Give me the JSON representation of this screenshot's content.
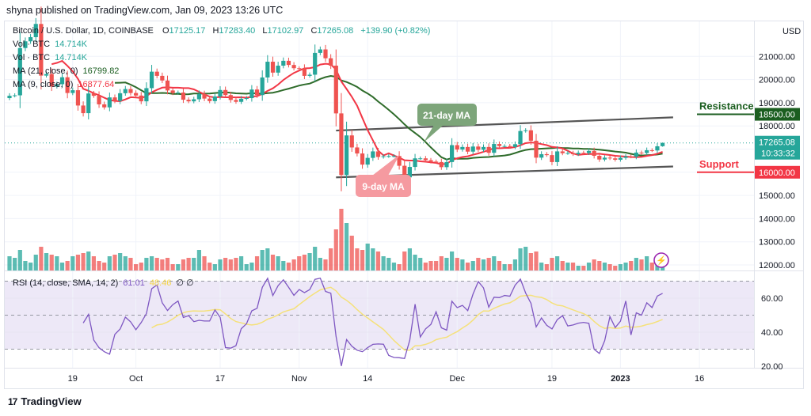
{
  "publisher_line": "shyna published on TradingView.com, Jan 09, 2023 13:26 UTC",
  "legend": {
    "symbol": "Bitcoin / U.S. Dollar, 1D, COINBASE",
    "open_label": "O",
    "open": "17125.17",
    "high_label": "H",
    "high": "17283.40",
    "low_label": "L",
    "low": "17102.97",
    "close_label": "C",
    "close": "17265.08",
    "change": "+139.90 (+0.82%)",
    "vol1_label": "Vol · BTC",
    "vol1": "14.714K",
    "vol2_label": "Vol · BTC",
    "vol2": "14.714K",
    "ma21_label": "MA (21, close, 0)",
    "ma21": "16799.82",
    "ma9_label": "MA (9, close, 0)",
    "ma9": "16877.64",
    "rsi_label": "RSI (14, close, SMA, 14, 2)",
    "rsi": "61.01",
    "rsi_sma": "48.46",
    "rsi_extra": "∅ ∅"
  },
  "logo_text": "TradingView",
  "colors": {
    "up": "#26a69a",
    "down": "#ef5350",
    "ma21": "#2e6b2a",
    "ma9": "#f23645",
    "rsi": "#7e57c2",
    "rsi_sma": "#f5e17a",
    "rsi_band": "#ede8f7",
    "resistance": "#1b5e20",
    "support": "#f23645"
  },
  "chart_data": {
    "type": "candlestick",
    "currency_label": "USD",
    "price_ticks": [
      "21000.00",
      "20000.00",
      "19000.00",
      "18000.00",
      "15000.00",
      "14000.00",
      "13000.00",
      "12000.00"
    ],
    "price_tick_values": [
      21000,
      20000,
      19000,
      18000,
      15000,
      14000,
      13000,
      12000
    ],
    "rsi_ticks": [
      "60.00",
      "40.00",
      "20.00"
    ],
    "rsi_tick_values": [
      60,
      40,
      20
    ],
    "rsi_bands": [
      70,
      50,
      30
    ],
    "x_ticks": [
      {
        "label": "19",
        "date": "2022-09-19"
      },
      {
        "label": "Oct",
        "date": "2022-10-01"
      },
      {
        "label": "17",
        "date": "2022-10-17"
      },
      {
        "label": "Nov",
        "date": "2022-11-01"
      },
      {
        "label": "14",
        "date": "2022-11-14"
      },
      {
        "label": "Dec",
        "date": "2022-12-01"
      },
      {
        "label": "19",
        "date": "2022-12-19"
      },
      {
        "label": "2023",
        "date": "2023-01-01",
        "bold": true
      },
      {
        "label": "16",
        "date": "2023-01-16"
      }
    ],
    "last_price_badge": {
      "price": "17265.08",
      "countdown": "10:33:32"
    },
    "levels": [
      {
        "name": "Resistance",
        "value": 18500,
        "label": "18500.00",
        "color": "#1b5e20"
      },
      {
        "name": "Support",
        "value": 16000,
        "label": "16000.00",
        "color": "#f23645"
      }
    ],
    "trendlines": [
      {
        "from": [
          "2022-11-08",
          17800
        ],
        "to": [
          "2023-01-11",
          18370
        ]
      },
      {
        "from": [
          "2022-11-08",
          15780
        ],
        "to": [
          "2023-01-11",
          16250
        ]
      }
    ],
    "callouts": [
      {
        "text": "21-day MA",
        "color": "#7da57a"
      },
      {
        "text": "9-day MA",
        "color": "#f59aa0"
      }
    ],
    "last_bar": {
      "open": 17125.17,
      "high": 17283.4,
      "low": 17102.97,
      "close": 17265.08,
      "volume_k": 14.714
    },
    "dates": [
      "2022-09-07",
      "2022-09-08",
      "2022-09-09",
      "2022-09-10",
      "2022-09-11",
      "2022-09-12",
      "2022-09-13",
      "2022-09-14",
      "2022-09-15",
      "2022-09-16",
      "2022-09-17",
      "2022-09-18",
      "2022-09-19",
      "2022-09-20",
      "2022-09-21",
      "2022-09-22",
      "2022-09-23",
      "2022-09-24",
      "2022-09-25",
      "2022-09-26",
      "2022-09-27",
      "2022-09-28",
      "2022-09-29",
      "2022-09-30",
      "2022-10-01",
      "2022-10-02",
      "2022-10-03",
      "2022-10-04",
      "2022-10-05",
      "2022-10-06",
      "2022-10-07",
      "2022-10-08",
      "2022-10-09",
      "2022-10-10",
      "2022-10-11",
      "2022-10-12",
      "2022-10-13",
      "2022-10-14",
      "2022-10-15",
      "2022-10-16",
      "2022-10-17",
      "2022-10-18",
      "2022-10-19",
      "2022-10-20",
      "2022-10-21",
      "2022-10-22",
      "2022-10-23",
      "2022-10-24",
      "2022-10-25",
      "2022-10-26",
      "2022-10-27",
      "2022-10-28",
      "2022-10-29",
      "2022-10-30",
      "2022-10-31",
      "2022-11-01",
      "2022-11-02",
      "2022-11-03",
      "2022-11-04",
      "2022-11-05",
      "2022-11-06",
      "2022-11-07",
      "2022-11-08",
      "2022-11-09",
      "2022-11-10",
      "2022-11-11",
      "2022-11-12",
      "2022-11-13",
      "2022-11-14",
      "2022-11-15",
      "2022-11-16",
      "2022-11-17",
      "2022-11-18",
      "2022-11-19",
      "2022-11-20",
      "2022-11-21",
      "2022-11-22",
      "2022-11-23",
      "2022-11-24",
      "2022-11-25",
      "2022-11-26",
      "2022-11-27",
      "2022-11-28",
      "2022-11-29",
      "2022-11-30",
      "2022-12-01",
      "2022-12-02",
      "2022-12-03",
      "2022-12-04",
      "2022-12-05",
      "2022-12-06",
      "2022-12-07",
      "2022-12-08",
      "2022-12-09",
      "2022-12-10",
      "2022-12-11",
      "2022-12-12",
      "2022-12-13",
      "2022-12-14",
      "2022-12-15",
      "2022-12-16",
      "2022-12-17",
      "2022-12-18",
      "2022-12-19",
      "2022-12-20",
      "2022-12-21",
      "2022-12-22",
      "2022-12-23",
      "2022-12-24",
      "2022-12-25",
      "2022-12-26",
      "2022-12-27",
      "2022-12-28",
      "2022-12-29",
      "2022-12-30",
      "2022-12-31",
      "2023-01-01",
      "2023-01-02",
      "2023-01-03",
      "2023-01-04",
      "2023-01-05",
      "2023-01-06",
      "2023-01-07",
      "2023-01-08",
      "2023-01-09"
    ],
    "close": [
      19300,
      19320,
      21360,
      21650,
      21830,
      22400,
      20170,
      20240,
      19700,
      19800,
      20100,
      19420,
      19540,
      18880,
      18550,
      19400,
      19300,
      18930,
      18800,
      19230,
      19080,
      19410,
      19590,
      19420,
      19310,
      19060,
      19630,
      20340,
      20160,
      19960,
      19530,
      19420,
      19440,
      19130,
      19060,
      19150,
      19380,
      19180,
      19070,
      19270,
      19550,
      19330,
      19120,
      19040,
      19170,
      19200,
      19570,
      19330,
      20090,
      20770,
      20300,
      20600,
      20810,
      20630,
      20490,
      20480,
      20160,
      20210,
      21150,
      21300,
      20920,
      20600,
      18540,
      15880,
      17590,
      17070,
      16810,
      16330,
      16620,
      16900,
      16660,
      16690,
      16700,
      16700,
      16280,
      15780,
      16230,
      16600,
      16600,
      16520,
      16460,
      16440,
      16220,
      16440,
      17170,
      16980,
      17090,
      16890,
      17110,
      16970,
      17090,
      16840,
      17220,
      17130,
      17130,
      17090,
      17210,
      17780,
      17810,
      17360,
      16630,
      16780,
      16740,
      16440,
      16900,
      16820,
      16830,
      16780,
      16840,
      16830,
      16920,
      16710,
      16550,
      16630,
      16600,
      16540,
      16620,
      16680,
      16670,
      16850,
      16830,
      16950,
      16940,
      17120,
      17265.08
    ],
    "volume_k": [
      45,
      40,
      65,
      30,
      25,
      50,
      75,
      55,
      50,
      45,
      25,
      30,
      45,
      50,
      55,
      60,
      45,
      30,
      25,
      45,
      50,
      55,
      45,
      40,
      20,
      25,
      40,
      45,
      40,
      35,
      40,
      20,
      20,
      35,
      40,
      40,
      65,
      45,
      25,
      20,
      35,
      40,
      35,
      40,
      45,
      20,
      25,
      45,
      65,
      70,
      50,
      45,
      30,
      25,
      35,
      45,
      50,
      55,
      75,
      40,
      35,
      70,
      130,
      195,
      150,
      110,
      70,
      65,
      85,
      70,
      60,
      45,
      40,
      25,
      20,
      60,
      70,
      50,
      40,
      25,
      30,
      30,
      45,
      40,
      60,
      40,
      35,
      25,
      30,
      40,
      35,
      40,
      45,
      30,
      20,
      20,
      35,
      70,
      75,
      55,
      60,
      25,
      20,
      40,
      45,
      30,
      25,
      25,
      15,
      15,
      25,
      35,
      30,
      25,
      20,
      15,
      20,
      25,
      30,
      40,
      35,
      45,
      25,
      40,
      14.714
    ]
  }
}
